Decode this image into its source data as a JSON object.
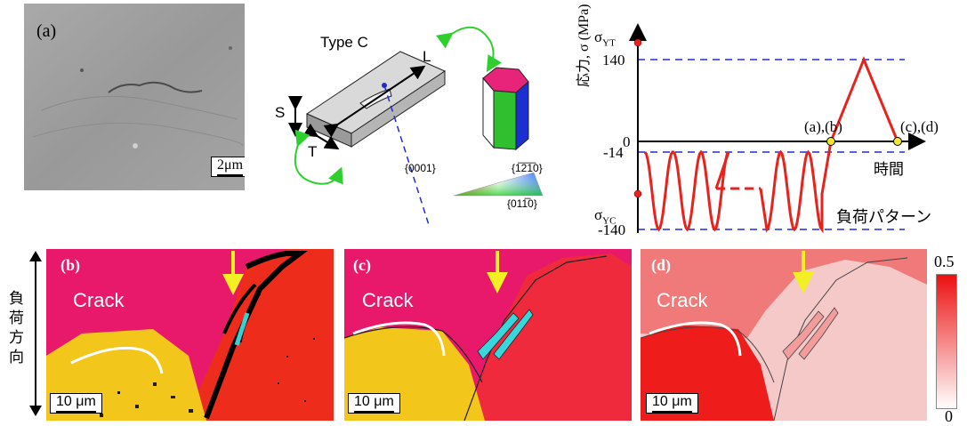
{
  "panel_a": {
    "label": "(a)",
    "scale_bar": "2μm"
  },
  "specimen": {
    "type_label": "Type C",
    "axis_L": "L",
    "axis_S": "S",
    "axis_T": "T"
  },
  "ipf_key": {
    "corner_0001": "{0001}",
    "corner_1210": "{1̅2̅1̅0}",
    "corner_0110": "{011̅0}"
  },
  "load_chart": {
    "ylabel": "応力, σ (MPa)",
    "xlabel": "時間",
    "pattern_label": "負荷パターン",
    "sigma_yt": "σYT",
    "sigma_yc": "σYC",
    "ticks": [
      "140",
      "0",
      "-14",
      "-140"
    ],
    "marker_ab": "(a),(b)",
    "marker_cd": "(c),(d)",
    "colors": {
      "line": "#e8221c",
      "guide": "#1f2bd6",
      "marker": "#f2e72a"
    }
  },
  "panels": [
    {
      "label": "(b)",
      "crack": "Crack",
      "scale_bar": "10 μm"
    },
    {
      "label": "(c)",
      "crack": "Crack",
      "scale_bar": "10 μm"
    },
    {
      "label": "(d)",
      "crack": "Crack",
      "scale_bar": "10 μm"
    }
  ],
  "load_direction": "負荷方向",
  "colorbar": {
    "max": "0.5",
    "min": "0"
  }
}
